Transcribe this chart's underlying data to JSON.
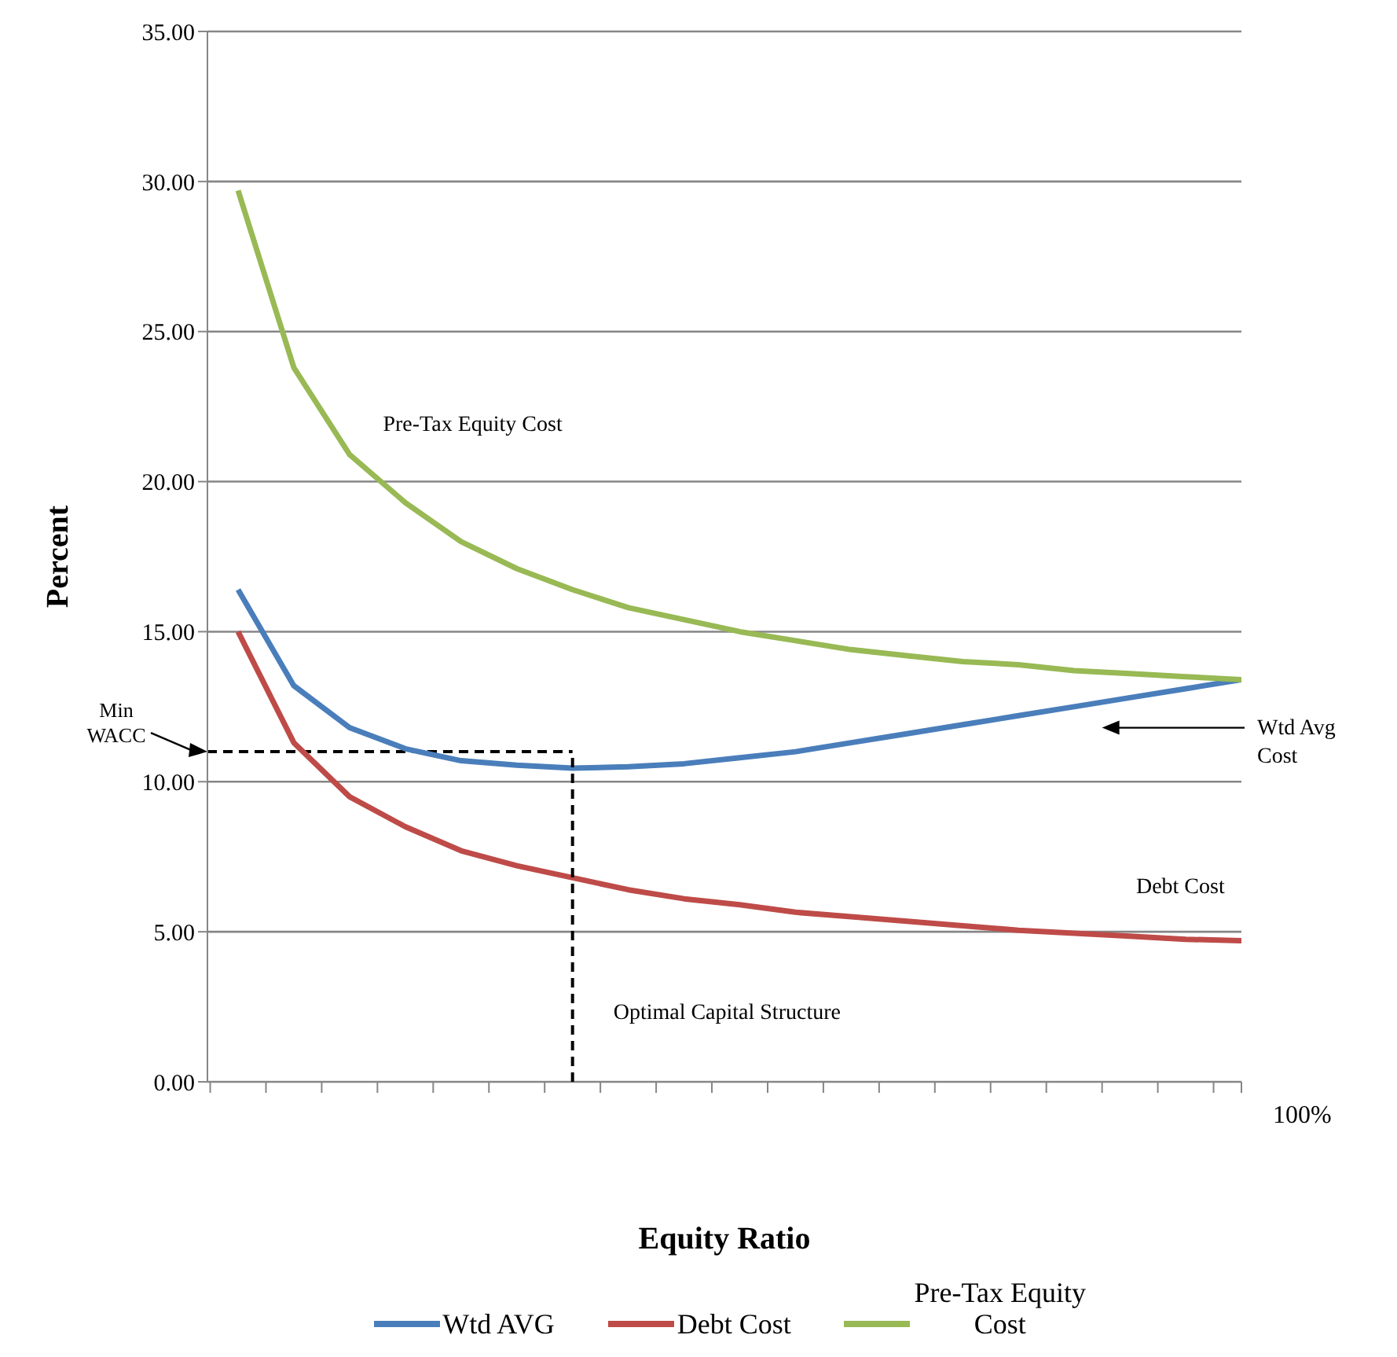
{
  "chart_data": {
    "type": "line",
    "xlabel": "Equity Ratio",
    "ylabel": "Percent",
    "categories": [
      null,
      null,
      null,
      null,
      null,
      null,
      null,
      null,
      null,
      null,
      null,
      null,
      null,
      null,
      null,
      null,
      null,
      null,
      null
    ],
    "ylim": [
      0,
      35
    ],
    "yticks": [
      {
        "value": 0,
        "label": "0.00"
      },
      {
        "value": 5,
        "label": "5.00"
      },
      {
        "value": 10,
        "label": "10.00"
      },
      {
        "value": 15,
        "label": "15.00"
      },
      {
        "value": 20,
        "label": "20.00"
      },
      {
        "value": 25,
        "label": "25.00"
      },
      {
        "value": 30,
        "label": "30.00"
      },
      {
        "value": 35,
        "label": "35.00"
      }
    ],
    "series": [
      {
        "name": "Wtd AVG",
        "color": "#4a7ebb",
        "values": [
          16.4,
          13.2,
          11.8,
          11.1,
          10.7,
          10.55,
          10.45,
          10.5,
          10.6,
          10.8,
          11.0,
          11.3,
          11.6,
          11.9,
          12.2,
          12.5,
          12.8,
          13.1,
          13.4
        ]
      },
      {
        "name": "Debt Cost",
        "color": "#be4b48",
        "values": [
          15.0,
          11.3,
          9.5,
          8.5,
          7.7,
          7.2,
          6.8,
          6.4,
          6.1,
          5.9,
          5.65,
          5.5,
          5.35,
          5.2,
          5.05,
          4.95,
          4.85,
          4.75,
          4.7
        ]
      },
      {
        "name": "Pre-Tax Equity Cost",
        "color": "#98b954",
        "values": [
          29.7,
          23.8,
          20.9,
          19.3,
          18.0,
          17.1,
          16.4,
          15.8,
          15.4,
          15.0,
          14.7,
          14.4,
          14.2,
          14.0,
          13.9,
          13.7,
          13.6,
          13.5,
          13.4
        ]
      }
    ],
    "ref_lines": [
      {
        "axis": "y",
        "value": 11,
        "label": "Min WACC",
        "color": "#000000",
        "line_style": "dashed"
      }
    ],
    "annotations": [
      "Pre-Tax Equity Cost",
      "Wtd Avg Cost",
      "Debt Cost",
      "100%",
      "Optimal Capital Structure"
    ],
    "grid": "y",
    "legend": "bottom",
    "marker": "none",
    "line_style": "solid"
  }
}
